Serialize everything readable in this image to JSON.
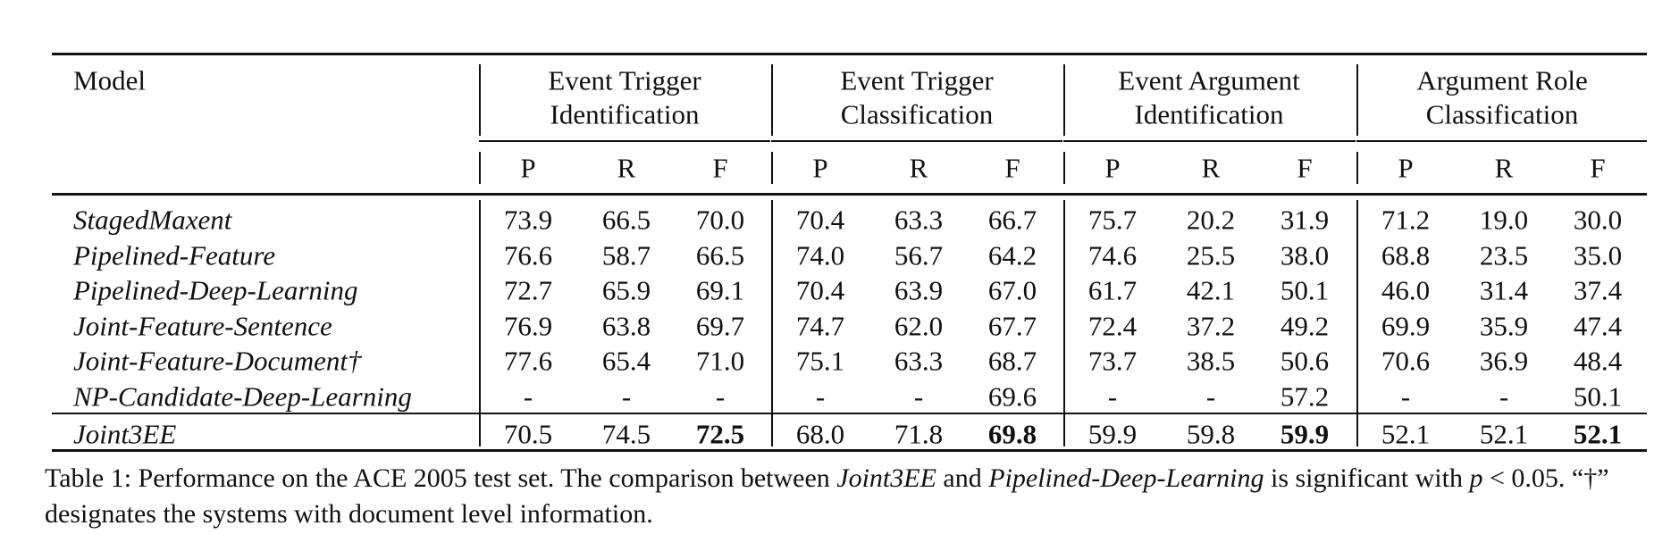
{
  "table": {
    "header": {
      "model": "Model",
      "groups": [
        [
          "Event Trigger",
          "Identification"
        ],
        [
          "Event Trigger",
          "Classification"
        ],
        [
          "Event Argument",
          "Identification"
        ],
        [
          "Argument Role",
          "Classification"
        ]
      ],
      "metrics": [
        "P",
        "R",
        "F"
      ]
    },
    "rows": [
      {
        "model": "StagedMaxent",
        "values": [
          "73.9",
          "66.5",
          "70.0",
          "70.4",
          "63.3",
          "66.7",
          "75.7",
          "20.2",
          "31.9",
          "71.2",
          "19.0",
          "30.0"
        ]
      },
      {
        "model": "Pipelined-Feature",
        "values": [
          "76.6",
          "58.7",
          "66.5",
          "74.0",
          "56.7",
          "64.2",
          "74.6",
          "25.5",
          "38.0",
          "68.8",
          "23.5",
          "35.0"
        ]
      },
      {
        "model": "Pipelined-Deep-Learning",
        "values": [
          "72.7",
          "65.9",
          "69.1",
          "70.4",
          "63.9",
          "67.0",
          "61.7",
          "42.1",
          "50.1",
          "46.0",
          "31.4",
          "37.4"
        ]
      },
      {
        "model": "Joint-Feature-Sentence",
        "values": [
          "76.9",
          "63.8",
          "69.7",
          "74.7",
          "62.0",
          "67.7",
          "72.4",
          "37.2",
          "49.2",
          "69.9",
          "35.9",
          "47.4"
        ]
      },
      {
        "model": "Joint-Feature-Document†",
        "values": [
          "77.6",
          "65.4",
          "71.0",
          "75.1",
          "63.3",
          "68.7",
          "73.7",
          "38.5",
          "50.6",
          "70.6",
          "36.9",
          "48.4"
        ]
      },
      {
        "model": "NP-Candidate-Deep-Learning",
        "values": [
          "-",
          "-",
          "-",
          "-",
          "-",
          "69.6",
          "-",
          "-",
          "57.2",
          "-",
          "-",
          "50.1"
        ]
      },
      {
        "model": "Joint3EE",
        "values": [
          "70.5",
          "74.5",
          "72.5",
          "68.0",
          "71.8",
          "69.8",
          "59.9",
          "59.8",
          "59.9",
          "52.1",
          "52.1",
          "52.1"
        ]
      }
    ]
  },
  "caption": [
    "Table 1: Performance on the ACE 2005 test set. The comparison between ",
    "Joint3EE",
    " and ",
    "Pipelined-Deep-Learning",
    " is significant with ",
    "p",
    " < 0.05. “†” designates the systems with document level information."
  ]
}
